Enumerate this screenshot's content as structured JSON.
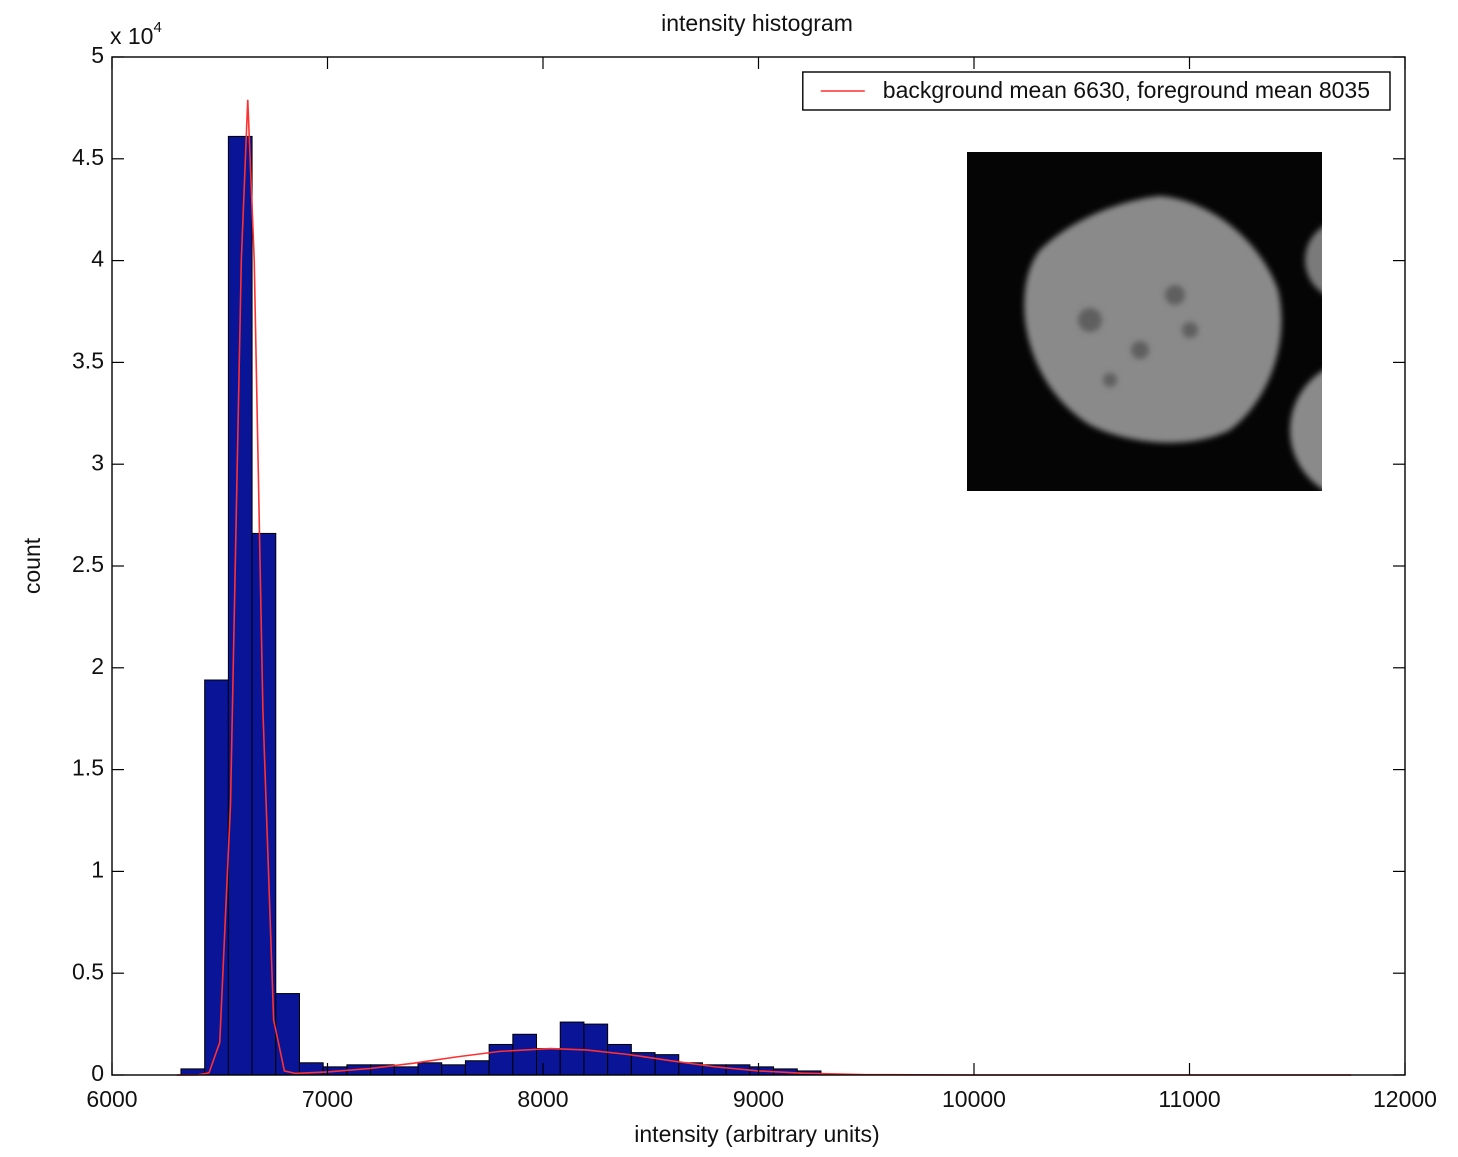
{
  "chart_data": {
    "type": "histogram",
    "title": "intensity histogram",
    "xlabel": "intensity (arbitrary units)",
    "ylabel": "count",
    "y_multiplier_base": "x 10",
    "y_multiplier_exponent": "4",
    "bins": [
      6320,
      6430,
      6540,
      6650,
      6760,
      6870,
      6980,
      7090,
      7200,
      7310,
      7420,
      7530,
      7640,
      7750,
      7860,
      7970,
      8080,
      8190,
      8300,
      8410,
      8520,
      8630,
      8740,
      8850,
      8960,
      9070,
      9180,
      9290
    ],
    "counts": [
      300,
      19400,
      46100,
      26600,
      4000,
      600,
      400,
      500,
      500,
      400,
      600,
      500,
      700,
      1500,
      2000,
      1300,
      2600,
      2500,
      1500,
      1100,
      1000,
      600,
      500,
      500,
      400,
      300,
      200
    ],
    "color": "#0a1496",
    "edgecolor": "#000000",
    "fit": {
      "name": "background mean 6630, foreground mean 8035",
      "color": "#ff3030",
      "x": [
        6300,
        6400,
        6450,
        6500,
        6550,
        6600,
        6630,
        6660,
        6700,
        6750,
        6800,
        6850,
        6900,
        7000,
        7200,
        7400,
        7600,
        7800,
        8035,
        8200,
        8400,
        8600,
        8800,
        9000,
        9200,
        9500,
        10000,
        10500,
        11000,
        11750
      ],
      "values": [
        0,
        10,
        100,
        1600,
        13300,
        40000,
        47900,
        40000,
        18000,
        2700,
        200,
        80,
        100,
        150,
        320,
        580,
        890,
        1160,
        1300,
        1230,
        1000,
        690,
        400,
        200,
        90,
        18,
        0,
        0,
        0,
        0
      ]
    },
    "legend": "upper right",
    "xlim": [
      6000,
      12000
    ],
    "xticks": [
      6000,
      7000,
      8000,
      9000,
      10000,
      11000,
      12000
    ],
    "ylim": [
      0,
      50000
    ],
    "yticks": [
      0,
      {
        "value": 5000,
        "label": "0.5"
      },
      {
        "value": 10000,
        "label": "1"
      },
      {
        "value": 15000,
        "label": "1.5"
      },
      {
        "value": 20000,
        "label": "2"
      },
      {
        "value": 25000,
        "label": "2.5"
      },
      {
        "value": 30000,
        "label": "3"
      },
      {
        "value": 35000,
        "label": "3.5"
      },
      {
        "value": 40000,
        "label": "4"
      },
      {
        "value": 45000,
        "label": "4.5"
      },
      {
        "value": 50000,
        "label": "5"
      }
    ]
  }
}
